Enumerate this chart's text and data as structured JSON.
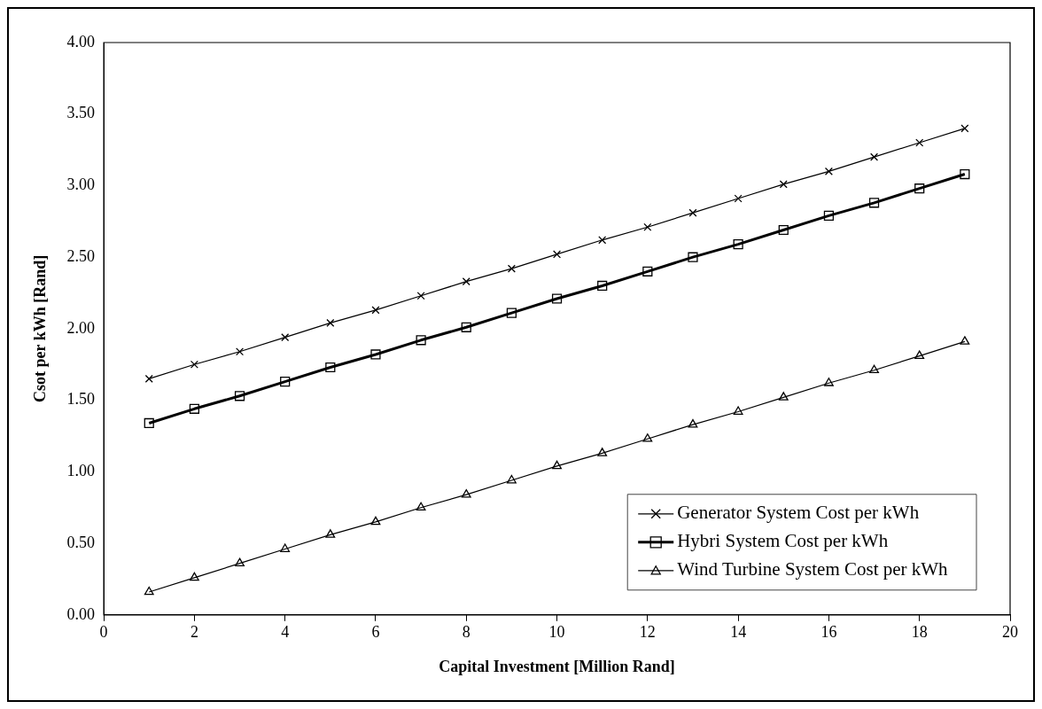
{
  "chart_data": {
    "type": "line",
    "xlabel": "Capital Investment [Million Rand]",
    "ylabel": "Csot per kWh [Rand]",
    "x": [
      1,
      2,
      3,
      4,
      5,
      6,
      7,
      8,
      9,
      10,
      11,
      12,
      13,
      14,
      15,
      16,
      17,
      18,
      19
    ],
    "series": [
      {
        "name": "Generator System Cost per kWh",
        "color": "#000000",
        "marker": "cross",
        "values": [
          1.65,
          1.75,
          1.84,
          1.94,
          2.04,
          2.13,
          2.23,
          2.33,
          2.42,
          2.52,
          2.62,
          2.71,
          2.81,
          2.91,
          3.01,
          3.1,
          3.2,
          3.3,
          3.4
        ]
      },
      {
        "name": "Hybri System Cost per kWh",
        "color": "#000000",
        "marker": "square",
        "values": [
          1.34,
          1.44,
          1.53,
          1.63,
          1.73,
          1.82,
          1.92,
          2.01,
          2.11,
          2.21,
          2.3,
          2.4,
          2.5,
          2.59,
          2.69,
          2.79,
          2.88,
          2.98,
          3.08
        ]
      },
      {
        "name": "Wind Turbine System Cost per kWh",
        "color": "#000000",
        "marker": "triangle",
        "values": [
          0.16,
          0.26,
          0.36,
          0.46,
          0.56,
          0.65,
          0.75,
          0.84,
          0.94,
          1.04,
          1.13,
          1.23,
          1.33,
          1.42,
          1.52,
          1.62,
          1.71,
          1.81,
          1.91
        ]
      }
    ],
    "xlim": [
      0,
      20
    ],
    "xticks": [
      0,
      2,
      4,
      6,
      8,
      10,
      12,
      14,
      16,
      18,
      20
    ],
    "ylim": [
      0,
      4
    ],
    "yticks": [
      {
        "value": 0,
        "label": "0.00"
      },
      {
        "value": 0.5,
        "label": "0.50"
      },
      {
        "value": 1,
        "label": "1.00"
      },
      {
        "value": 1.5,
        "label": "1.50"
      },
      {
        "value": 2,
        "label": "2.00"
      },
      {
        "value": 2.5,
        "label": "2.50"
      },
      {
        "value": 3,
        "label": "3.00"
      },
      {
        "value": 3.5,
        "label": "3.50"
      },
      {
        "value": 4,
        "label": "4.00"
      }
    ],
    "grid": false,
    "legend": "bottom right"
  }
}
